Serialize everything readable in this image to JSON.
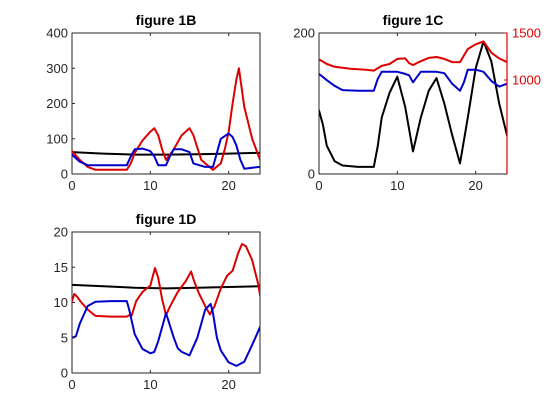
{
  "chart_data": [
    {
      "title": "figure 1B",
      "type": "line",
      "xlim": [
        0,
        24
      ],
      "ylim": [
        0,
        400
      ],
      "xticks": [
        0,
        10,
        20
      ],
      "yticks": [
        0,
        100,
        200,
        300,
        400
      ],
      "series": [
        {
          "color": "#000000",
          "x": [
            0,
            4,
            8,
            12,
            16,
            20,
            24
          ],
          "y": [
            62,
            58,
            55,
            55,
            56,
            58,
            60
          ]
        },
        {
          "color": "#dd0000",
          "x": [
            0,
            1,
            2,
            3,
            7,
            7.5,
            8,
            9,
            10,
            10.5,
            11,
            11.5,
            12,
            13,
            14,
            15,
            15.5,
            16,
            16.5,
            17,
            18,
            19,
            19.5,
            20,
            20.5,
            21,
            21.3,
            22,
            23,
            24
          ],
          "y": [
            65,
            40,
            20,
            12,
            12,
            30,
            60,
            95,
            120,
            130,
            110,
            70,
            40,
            70,
            110,
            130,
            110,
            75,
            40,
            30,
            12,
            30,
            70,
            120,
            200,
            270,
            300,
            190,
            100,
            40
          ]
        },
        {
          "color": "#0000cc",
          "x": [
            0,
            1,
            2,
            7,
            7.5,
            8,
            9,
            10,
            10.5,
            11,
            12,
            12.5,
            13,
            14,
            15,
            15.5,
            17,
            18,
            18.5,
            19,
            20,
            20.5,
            21,
            21.5,
            22,
            23,
            24
          ],
          "y": [
            55,
            35,
            25,
            25,
            50,
            70,
            72,
            65,
            50,
            25,
            25,
            50,
            70,
            70,
            62,
            30,
            20,
            20,
            60,
            100,
            115,
            105,
            80,
            40,
            15,
            18,
            20
          ]
        }
      ]
    },
    {
      "title": "figure 1C",
      "type": "line",
      "xlim": [
        0,
        24
      ],
      "ylim": [
        0,
        200
      ],
      "ylim_right": [
        0,
        1500
      ],
      "right_axis_color": "#dd0000",
      "xticks": [
        0,
        10,
        20
      ],
      "yticks": [
        0,
        200
      ],
      "yticks_right": [
        1000,
        1500
      ],
      "series": [
        {
          "color": "#000000",
          "axis": "left",
          "x": [
            0,
            0.5,
            1,
            2,
            3,
            5,
            7,
            7.5,
            8,
            9,
            10,
            11,
            12,
            13,
            14,
            15,
            16,
            17,
            18,
            19,
            20,
            21,
            22,
            23,
            24
          ],
          "y": [
            90,
            70,
            40,
            18,
            12,
            10,
            10,
            40,
            80,
            115,
            138,
            95,
            32,
            80,
            118,
            136,
            100,
            55,
            15,
            80,
            150,
            188,
            160,
            100,
            55
          ]
        },
        {
          "color": "#dd0000",
          "axis": "right",
          "x": [
            0,
            1,
            2,
            4,
            6,
            7,
            8,
            9,
            10,
            11,
            11.5,
            12,
            13,
            14,
            15,
            16,
            17,
            18,
            19,
            20,
            21,
            22,
            23,
            24
          ],
          "y": [
            1220,
            1170,
            1140,
            1120,
            1110,
            1100,
            1150,
            1170,
            1225,
            1230,
            1180,
            1160,
            1200,
            1235,
            1245,
            1225,
            1190,
            1190,
            1330,
            1380,
            1410,
            1290,
            1230,
            1190
          ]
        },
        {
          "color": "#0000cc",
          "axis": "left",
          "x": [
            0,
            1,
            2,
            3,
            5,
            7,
            7.5,
            8,
            9,
            10,
            11,
            11.5,
            12,
            13,
            15,
            16,
            17,
            18,
            18.5,
            19,
            20,
            21,
            22,
            23,
            24
          ],
          "y": [
            142,
            133,
            125,
            119,
            118,
            118,
            135,
            145,
            145,
            145,
            142,
            140,
            130,
            145,
            145,
            143,
            128,
            118,
            130,
            148,
            148,
            145,
            132,
            124,
            128
          ]
        }
      ]
    },
    {
      "title": "figure 1D",
      "type": "line",
      "xlim": [
        0,
        24
      ],
      "ylim": [
        0,
        20
      ],
      "xticks": [
        0,
        10,
        20
      ],
      "yticks": [
        0,
        5,
        10,
        15,
        20
      ],
      "series": [
        {
          "color": "#000000",
          "x": [
            0,
            4,
            8,
            12,
            16,
            20,
            24
          ],
          "y": [
            12.5,
            12.3,
            12.1,
            12.0,
            12.1,
            12.2,
            12.3
          ]
        },
        {
          "color": "#dd0000",
          "x": [
            0,
            0.3,
            0.6,
            1.2,
            2,
            3,
            5,
            7,
            7.3,
            7.6,
            8.2,
            9,
            10,
            10.6,
            11,
            11.5,
            12,
            12.5,
            13.5,
            14.5,
            15.2,
            15.6,
            16.2,
            17,
            17.6,
            18.2,
            19,
            19.8,
            20.5,
            21.2,
            21.7,
            22.2,
            23,
            23.8,
            24
          ],
          "y": [
            10.2,
            11.2,
            10.9,
            10,
            9,
            8.1,
            8,
            8,
            8.2,
            8.1,
            10.2,
            11.5,
            12.4,
            14.9,
            13.5,
            10.5,
            8.2,
            9.4,
            11.5,
            13,
            14.4,
            13,
            11.3,
            9.5,
            8.3,
            9.5,
            12,
            13.8,
            14.5,
            17,
            18.3,
            18,
            16,
            12.5,
            11
          ]
        },
        {
          "color": "#0000cc",
          "x": [
            0,
            0.5,
            1,
            2,
            3,
            5,
            7,
            7.3,
            8,
            9,
            10,
            10.5,
            11,
            12,
            13,
            13.5,
            14,
            15,
            16,
            17,
            17.7,
            18,
            18.5,
            19,
            20,
            21,
            22,
            23,
            24
          ],
          "y": [
            5,
            5.2,
            7,
            9.5,
            10.1,
            10.2,
            10.2,
            9,
            5.5,
            3.4,
            2.8,
            3,
            4.5,
            8.5,
            5,
            3.5,
            3,
            2.5,
            5,
            9,
            9.8,
            8.5,
            5,
            3.2,
            1.5,
            1,
            1.6,
            4,
            6.5
          ]
        }
      ]
    }
  ]
}
